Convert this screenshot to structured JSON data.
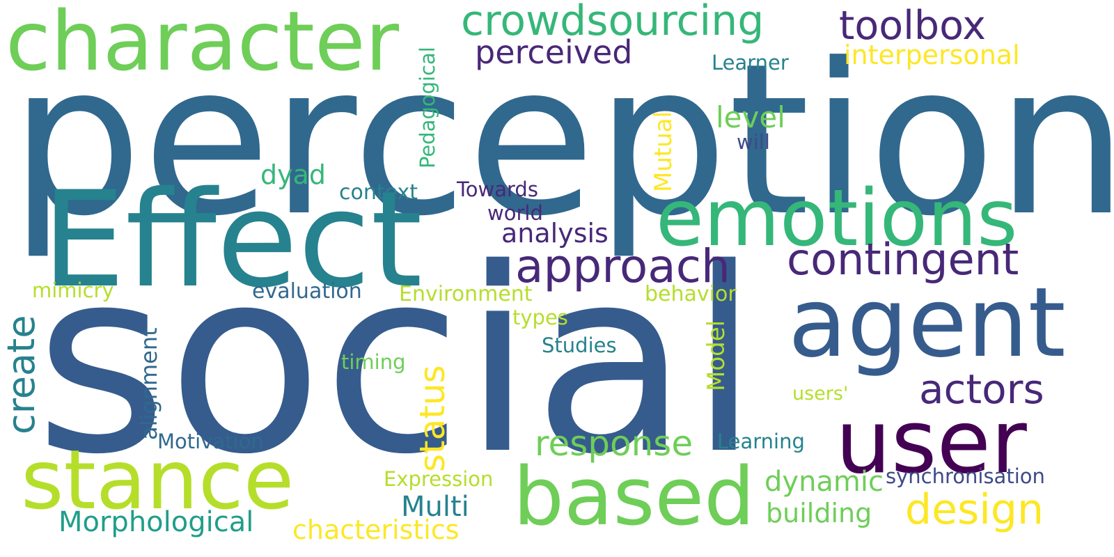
{
  "palette": {
    "dark_purple": "#440154",
    "purple": "#482878",
    "indigo": "#3e4a89",
    "blue": "#31688e",
    "steel_blue": "#365c8d",
    "teal": "#26828e",
    "teal_green": "#1f9e89",
    "green": "#35b779",
    "light_green": "#6ece58",
    "lime": "#b5de2b",
    "yellow": "#fde725"
  },
  "words": {
    "perception": "perception",
    "social": "social",
    "effect": "Effect",
    "character": "character",
    "emotions": "emotions",
    "agent": "agent",
    "user": "user",
    "stance": "stance",
    "based": "based",
    "crowdsourcing": "crowdsourcing",
    "toolbox": "toolbox",
    "perceived": "perceived",
    "interpersonal": "interpersonal",
    "learner": "Learner",
    "pedagogical": "Pedagogical",
    "mutual": "Mutual",
    "level": "level",
    "will": "will",
    "dyad": "dyad",
    "context": "context",
    "towards": "Towards",
    "world": "world",
    "analysis": "analysis",
    "approach": "approach",
    "contingent": "contingent",
    "create": "create",
    "mimicry": "mimicry",
    "evaluation": "evaluation",
    "environment": "Environment",
    "behavior": "behavior",
    "alignment": "alignment",
    "types": "types",
    "studies": "Studies",
    "model": "Model",
    "timing": "timing",
    "status": "status",
    "users": "users'",
    "actors": "actors",
    "motivation": "Motivation",
    "response": "response",
    "learning": "Learning",
    "expression": "Expression",
    "dynamic": "dynamic",
    "synchronisation": "synchronisation",
    "multi": "Multi",
    "design": "design",
    "morphological": "Morphological",
    "building": "building",
    "chacteristics": "chacteristics"
  }
}
